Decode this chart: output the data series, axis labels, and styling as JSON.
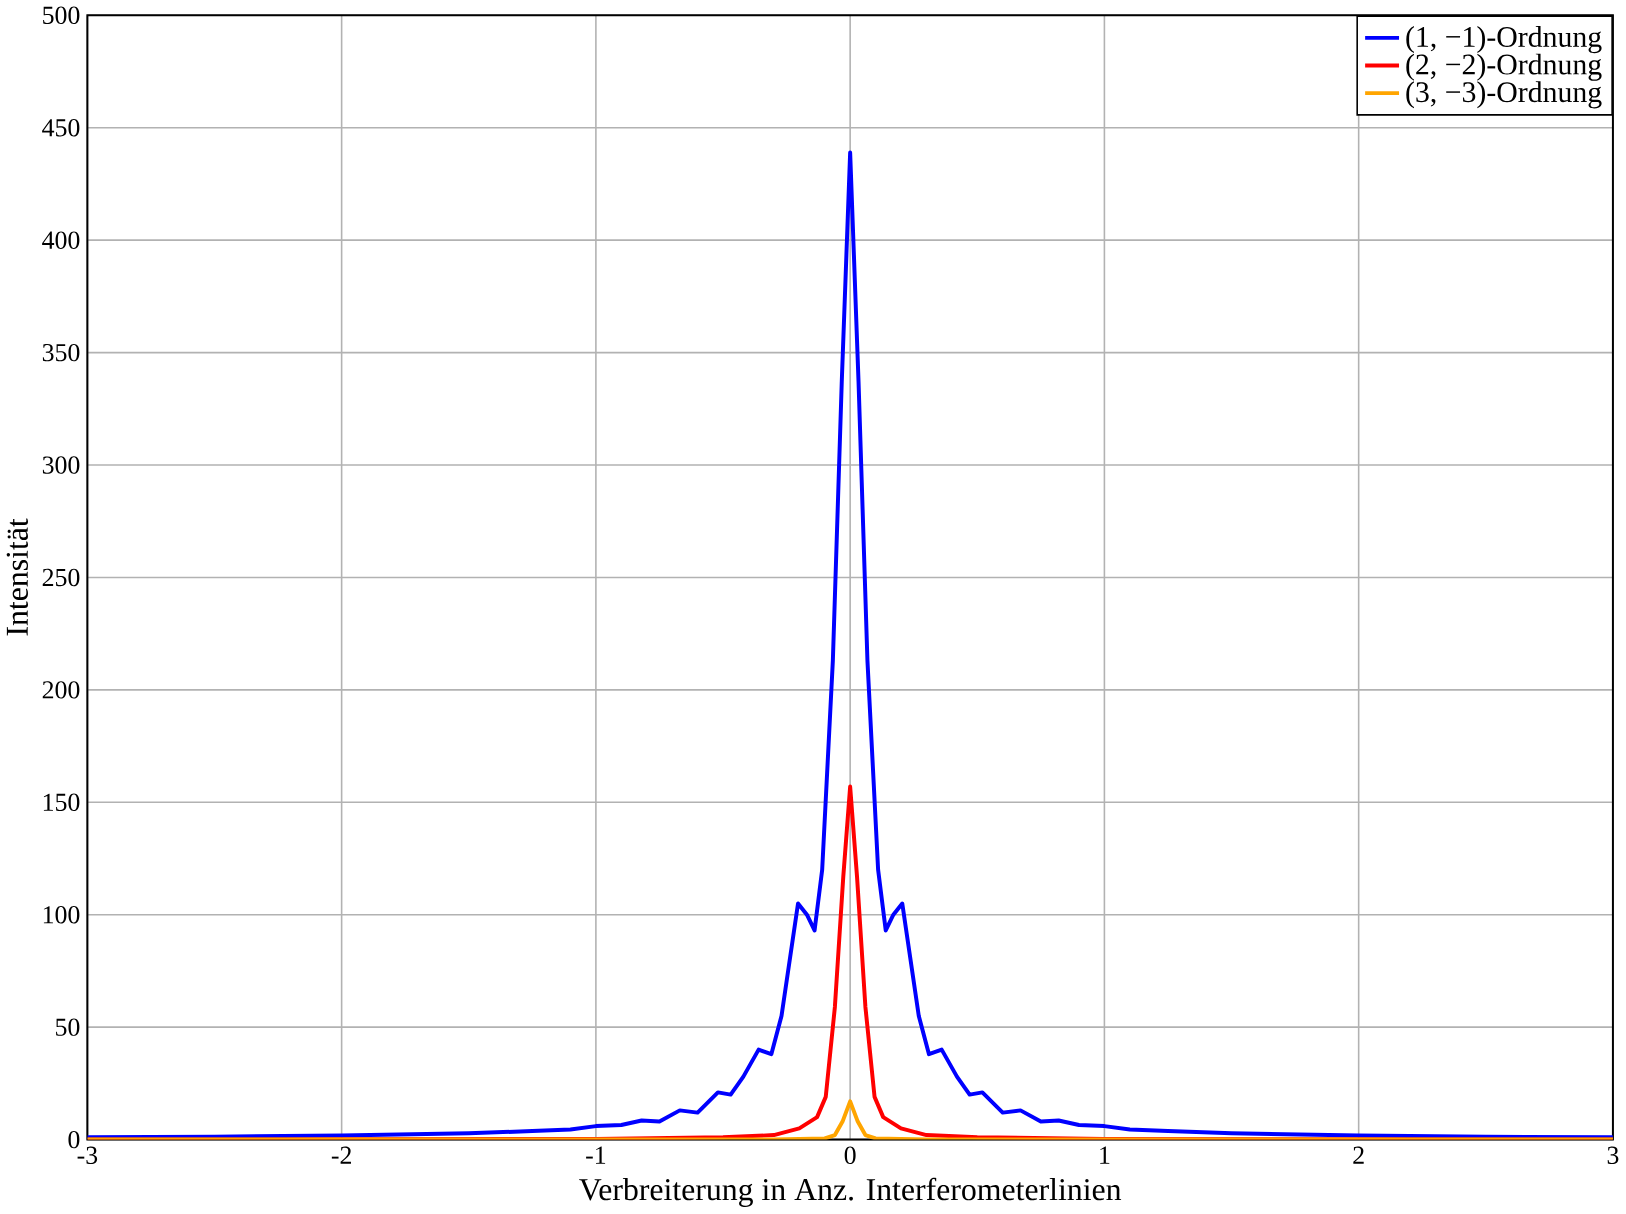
{
  "chart_data": {
    "type": "line",
    "xlabel": "Verbreiterung in Anz. Interferometerlinien",
    "ylabel": "Intensität",
    "xlim": [
      -3,
      3
    ],
    "ylim": [
      0,
      500
    ],
    "xticks": [
      -3,
      -2,
      -1,
      0,
      1,
      2,
      3
    ],
    "yticks": [
      0,
      50,
      100,
      150,
      200,
      250,
      300,
      350,
      400,
      450,
      500
    ],
    "grid": true,
    "legend": "top right",
    "line_style": "solid",
    "marker": "none",
    "series": [
      {
        "name": "(1, −1)-Ordnung",
        "color": "#0000ff",
        "x": [
          -3,
          -2.5,
          -2,
          -1.5,
          -1.25,
          -1.1,
          -1,
          -0.9,
          -0.82,
          -0.75,
          -0.67,
          -0.6,
          -0.52,
          -0.47,
          -0.42,
          -0.36,
          -0.31,
          -0.27,
          -0.205,
          -0.17,
          -0.14,
          -0.11,
          -0.068,
          -0.033,
          0,
          0.033,
          0.068,
          0.11,
          0.14,
          0.17,
          0.205,
          0.27,
          0.31,
          0.36,
          0.42,
          0.47,
          0.52,
          0.6,
          0.67,
          0.75,
          0.82,
          0.9,
          1,
          1.1,
          1.25,
          1.5,
          2,
          2.5,
          3
        ],
        "values": [
          1,
          1.3,
          1.8,
          2.8,
          3.8,
          4.5,
          6,
          6.5,
          8.5,
          8,
          13,
          12,
          21,
          20,
          28,
          40,
          38,
          55,
          105,
          100,
          93,
          120,
          213,
          337,
          439,
          337,
          213,
          120,
          93,
          100,
          105,
          55,
          38,
          40,
          28,
          20,
          21,
          12,
          13,
          8,
          8.5,
          6.5,
          6,
          4.5,
          3.8,
          2.8,
          1.8,
          1.3,
          1
        ]
      },
      {
        "name": "(2, −2)-Ordnung",
        "color": "#ff0000",
        "x": [
          -3,
          -1,
          -0.5,
          -0.3,
          -0.2,
          -0.13,
          -0.096,
          -0.06,
          -0.027,
          0,
          0.027,
          0.06,
          0.096,
          0.13,
          0.2,
          0.3,
          0.5,
          1,
          3
        ],
        "values": [
          0,
          0.3,
          1,
          2,
          5,
          10,
          19,
          59,
          117,
          157,
          117,
          59,
          19,
          10,
          5,
          2,
          1,
          0.3,
          0
        ]
      },
      {
        "name": "(3, −3)-Ordnung",
        "color": "#ffa500",
        "x": [
          -3,
          -0.3,
          -0.1,
          -0.06,
          -0.03,
          0,
          0.03,
          0.06,
          0.1,
          0.3,
          3
        ],
        "values": [
          0,
          0,
          0.5,
          2,
          8,
          17,
          8,
          2,
          0.5,
          0,
          0
        ]
      }
    ]
  }
}
